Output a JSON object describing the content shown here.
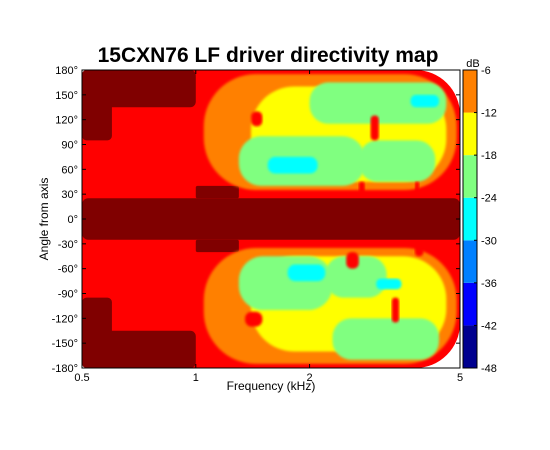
{
  "chart_data": {
    "type": "heatmap",
    "title": "15CXN76 LF driver directivity map",
    "xlabel": "Frequency (kHz)",
    "ylabel": "Angle from axis",
    "x_scale": "log",
    "xlim": [
      0.5,
      5
    ],
    "ylim": [
      -180,
      180
    ],
    "x_ticks": [
      {
        "value": 0.5,
        "label": "0.5"
      },
      {
        "value": 1,
        "label": "1"
      },
      {
        "value": 2,
        "label": "2"
      },
      {
        "value": 5,
        "label": "5"
      }
    ],
    "y_ticks": [
      {
        "value": 180,
        "label": "180°"
      },
      {
        "value": 150,
        "label": "150°"
      },
      {
        "value": 120,
        "label": "120°"
      },
      {
        "value": 90,
        "label": "90°"
      },
      {
        "value": 60,
        "label": "60°"
      },
      {
        "value": 30,
        "label": "30°"
      },
      {
        "value": 0,
        "label": "0°"
      },
      {
        "value": -30,
        "label": "-30°"
      },
      {
        "value": -60,
        "label": "-60°"
      },
      {
        "value": -90,
        "label": "-90°"
      },
      {
        "value": -120,
        "label": "-120°"
      },
      {
        "value": -150,
        "label": "-150°"
      },
      {
        "value": -180,
        "label": "-180°"
      }
    ],
    "colorbar": {
      "label": "dB",
      "range": [
        -48,
        -6
      ],
      "ticks": [
        {
          "value": -6,
          "label": "-6"
        },
        {
          "value": -12,
          "label": "-12"
        },
        {
          "value": -18,
          "label": "-18"
        },
        {
          "value": -24,
          "label": "-24"
        },
        {
          "value": -30,
          "label": "-30"
        },
        {
          "value": -36,
          "label": "-36"
        },
        {
          "value": -42,
          "label": "-42"
        },
        {
          "value": -48,
          "label": "-48"
        }
      ],
      "levels": [
        {
          "from": -48,
          "to": -42,
          "color": "#00008f"
        },
        {
          "from": -42,
          "to": -36,
          "color": "#0000ff"
        },
        {
          "from": -36,
          "to": -30,
          "color": "#0080ff"
        },
        {
          "from": -30,
          "to": -24,
          "color": "#00ffff"
        },
        {
          "from": -24,
          "to": -18,
          "color": "#80ff80"
        },
        {
          "from": -18,
          "to": -12,
          "color": "#ffff00"
        },
        {
          "from": -12,
          "to": -6,
          "color": "#ff8000"
        },
        {
          "from": -6,
          "to": 0,
          "color": "#ff0000"
        },
        {
          "from": 0,
          "to": 6,
          "color": "#800000"
        }
      ]
    },
    "grid": false,
    "legend": "colorbar right",
    "regions": [
      {
        "level": -3,
        "x": [
          0.5,
          5
        ],
        "y": [
          -180,
          180
        ],
        "note": "background"
      },
      {
        "level": 3,
        "x": [
          0.5,
          5
        ],
        "y": [
          -25,
          25
        ],
        "note": "on-axis band"
      },
      {
        "level": 3,
        "x": [
          0.5,
          1.0
        ],
        "y": [
          135,
          180
        ]
      },
      {
        "level": 3,
        "x": [
          0.5,
          1.0
        ],
        "y": [
          -180,
          -135
        ]
      },
      {
        "level": 3,
        "x": [
          0.5,
          0.6
        ],
        "y": [
          -180,
          -95
        ]
      },
      {
        "level": 3,
        "x": [
          0.5,
          0.6
        ],
        "y": [
          95,
          180
        ]
      },
      {
        "level": 3,
        "x": [
          1.0,
          1.3
        ],
        "y": [
          25,
          40
        ]
      },
      {
        "level": 3,
        "x": [
          1.0,
          1.3
        ],
        "y": [
          -40,
          -25
        ]
      },
      {
        "level": -9,
        "x": [
          1.05,
          4.9
        ],
        "y": [
          35,
          175
        ]
      },
      {
        "level": -9,
        "x": [
          1.05,
          4.9
        ],
        "y": [
          -175,
          -35
        ]
      },
      {
        "level": -15,
        "x": [
          1.4,
          4.6
        ],
        "y": [
          45,
          160
        ]
      },
      {
        "level": -15,
        "x": [
          1.4,
          4.6
        ],
        "y": [
          -160,
          -45
        ]
      },
      {
        "level": -21,
        "x": [
          1.3,
          2.8
        ],
        "y": [
          40,
          100
        ]
      },
      {
        "level": -21,
        "x": [
          2.7,
          4.3
        ],
        "y": [
          45,
          95
        ]
      },
      {
        "level": -21,
        "x": [
          2.0,
          4.6
        ],
        "y": [
          115,
          165
        ]
      },
      {
        "level": -21,
        "x": [
          1.3,
          2.3
        ],
        "y": [
          -110,
          -45
        ]
      },
      {
        "level": -21,
        "x": [
          2.2,
          3.2
        ],
        "y": [
          -95,
          -45
        ]
      },
      {
        "level": -21,
        "x": [
          2.3,
          4.4
        ],
        "y": [
          -170,
          -120
        ]
      },
      {
        "level": -27,
        "x": [
          1.55,
          2.1
        ],
        "y": [
          55,
          75
        ]
      },
      {
        "level": -27,
        "x": [
          1.75,
          2.2
        ],
        "y": [
          -75,
          -55
        ]
      },
      {
        "level": -27,
        "x": [
          3.7,
          4.4
        ],
        "y": [
          135,
          150
        ]
      },
      {
        "level": -27,
        "x": [
          3.0,
          3.5
        ],
        "y": [
          -85,
          -72
        ]
      },
      {
        "level": -3,
        "x": [
          1.4,
          1.5
        ],
        "y": [
          112,
          130
        ]
      },
      {
        "level": -3,
        "x": [
          1.35,
          1.5
        ],
        "y": [
          -130,
          -112
        ]
      },
      {
        "level": -3,
        "x": [
          2.9,
          3.05
        ],
        "y": [
          95,
          125
        ]
      },
      {
        "level": -3,
        "x": [
          3.3,
          3.45
        ],
        "y": [
          -125,
          -95
        ]
      },
      {
        "level": -3,
        "x": [
          2.7,
          2.8
        ],
        "y": [
          30,
          45
        ]
      },
      {
        "level": -3,
        "x": [
          3.8,
          3.9
        ],
        "y": [
          30,
          45
        ]
      },
      {
        "level": -3,
        "x": [
          2.5,
          2.7
        ],
        "y": [
          -60,
          -40
        ]
      },
      {
        "level": -3,
        "x": [
          3.8,
          4.0
        ],
        "y": [
          -45,
          -30
        ]
      }
    ]
  }
}
